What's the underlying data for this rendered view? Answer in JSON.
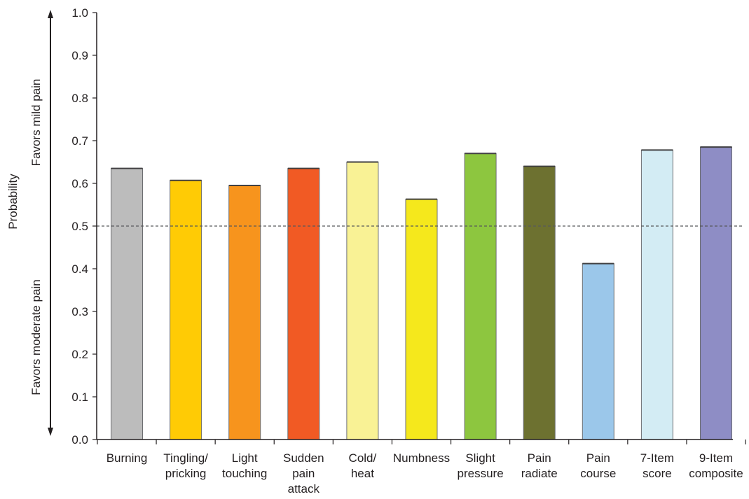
{
  "chart_data": {
    "type": "bar",
    "title": "",
    "xlabel": "",
    "ylabel": "Probability",
    "y_direction_labels": {
      "upper": "Favors mild pain",
      "lower": "Favors moderate pain"
    },
    "ylim": [
      0,
      1.0
    ],
    "yticks": [
      "0.0",
      "0.1",
      "0.2",
      "0.3",
      "0.4",
      "0.5",
      "0.6",
      "0.7",
      "0.8",
      "0.9",
      "1.0"
    ],
    "reference_line": 0.5,
    "grid": false,
    "legend": "none",
    "categories": [
      [
        "Burning"
      ],
      [
        "Tingling/",
        "pricking"
      ],
      [
        "Light",
        "touching"
      ],
      [
        "Sudden",
        "pain",
        "attack"
      ],
      [
        "Cold/",
        "heat"
      ],
      [
        "Numbness"
      ],
      [
        "Slight",
        "pressure"
      ],
      [
        "Pain",
        "radiate"
      ],
      [
        "Pain",
        "course"
      ],
      [
        "7-Item",
        "score"
      ],
      [
        "9-Item",
        "composite"
      ]
    ],
    "values": [
      0.635,
      0.607,
      0.595,
      0.635,
      0.65,
      0.563,
      0.67,
      0.64,
      0.412,
      0.678,
      0.685
    ],
    "colors": [
      "#bcbcbc",
      "#ffcb05",
      "#f7941d",
      "#f15a24",
      "#f9f295",
      "#f5e81c",
      "#8dc63f",
      "#6d7130",
      "#9bc7ea",
      "#d3ecf4",
      "#8e8dc5"
    ]
  }
}
